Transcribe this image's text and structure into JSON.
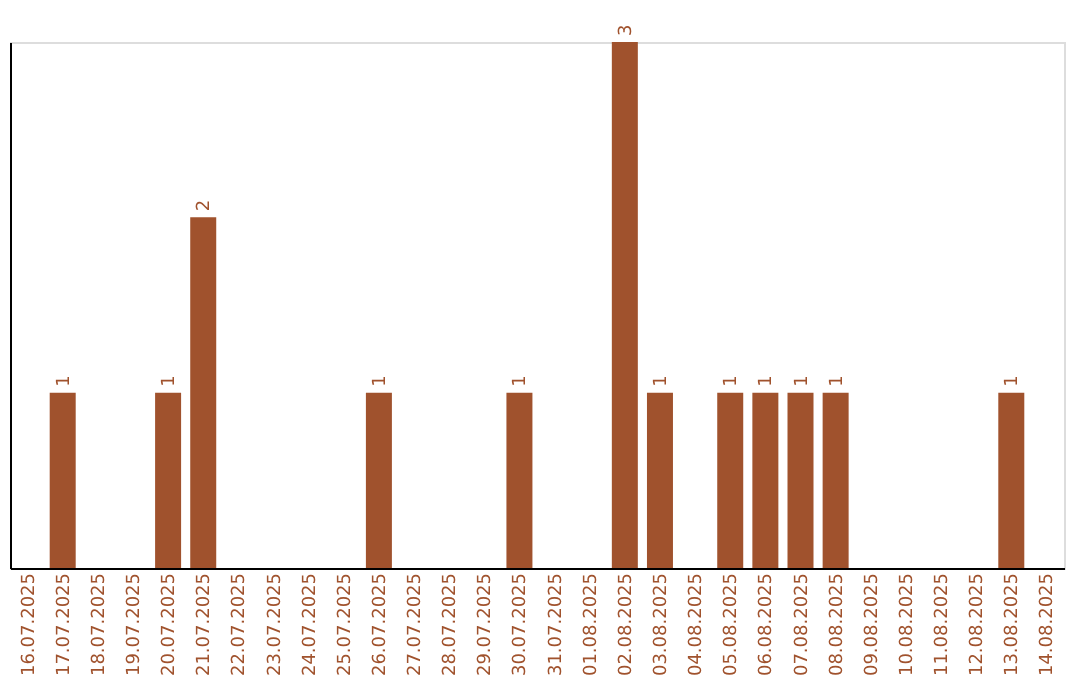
{
  "chart_data": {
    "type": "bar",
    "categories": [
      "16.07.2025",
      "17.07.2025",
      "18.07.2025",
      "19.07.2025",
      "20.07.2025",
      "21.07.2025",
      "22.07.2025",
      "23.07.2025",
      "24.07.2025",
      "25.07.2025",
      "26.07.2025",
      "27.07.2025",
      "28.07.2025",
      "29.07.2025",
      "30.07.2025",
      "31.07.2025",
      "01.08.2025",
      "02.08.2025",
      "03.08.2025",
      "04.08.2025",
      "05.08.2025",
      "06.08.2025",
      "07.08.2025",
      "08.08.2025",
      "09.08.2025",
      "10.08.2025",
      "11.08.2025",
      "12.08.2025",
      "13.08.2025",
      "14.08.2025"
    ],
    "values": [
      0,
      1,
      0,
      0,
      1,
      2,
      0,
      0,
      0,
      0,
      1,
      0,
      0,
      0,
      1,
      0,
      0,
      3,
      1,
      0,
      1,
      1,
      1,
      1,
      0,
      0,
      0,
      0,
      1,
      0
    ],
    "value_labels": [
      null,
      "1",
      null,
      null,
      "1",
      "2",
      null,
      null,
      null,
      null,
      "1",
      null,
      null,
      null,
      "1",
      null,
      null,
      "3",
      "1",
      null,
      "1",
      "1",
      "1",
      "1",
      null,
      null,
      null,
      null,
      "1",
      null
    ],
    "color": "#a0522d",
    "tick_labels": "x",
    "grid": false
  }
}
